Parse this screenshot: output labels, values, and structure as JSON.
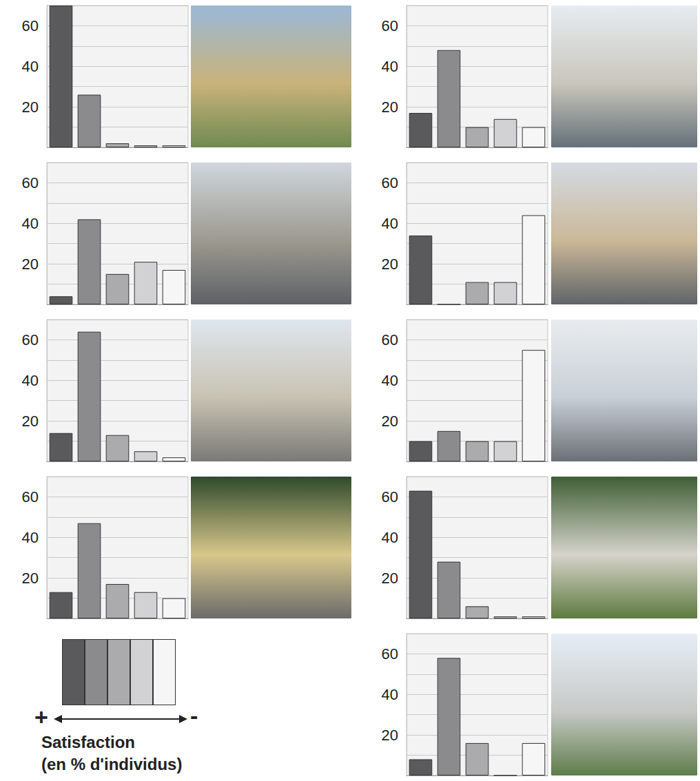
{
  "chart_data": [
    {
      "type": "bar",
      "categories": [
        null,
        null,
        null,
        null,
        null
      ],
      "values": [
        70,
        26,
        2,
        1,
        1
      ],
      "colors": [
        "#5a5a5c",
        "#8b8b8d",
        "#ababad",
        "#d2d2d4",
        "#f6f6f6"
      ],
      "ylim": [
        0,
        70
      ],
      "yticks": [
        20,
        40,
        60
      ],
      "grid": true,
      "tick_labels": "y"
    },
    {
      "type": "bar",
      "categories": [
        null,
        null,
        null,
        null,
        null
      ],
      "values": [
        4,
        42,
        15,
        21,
        17
      ],
      "colors": [
        "#5a5a5c",
        "#8b8b8d",
        "#ababad",
        "#d2d2d4",
        "#f6f6f6"
      ],
      "ylim": [
        0,
        70
      ],
      "yticks": [
        20,
        40,
        60
      ],
      "grid": true,
      "tick_labels": "y"
    },
    {
      "type": "bar",
      "categories": [
        null,
        null,
        null,
        null,
        null
      ],
      "values": [
        14,
        64,
        13,
        5,
        2
      ],
      "colors": [
        "#5a5a5c",
        "#8b8b8d",
        "#ababad",
        "#d2d2d4",
        "#f6f6f6"
      ],
      "ylim": [
        0,
        70
      ],
      "yticks": [
        20,
        40,
        60
      ],
      "grid": true,
      "tick_labels": "y"
    },
    {
      "type": "bar",
      "categories": [
        null,
        null,
        null,
        null,
        null
      ],
      "values": [
        13,
        47,
        17,
        13,
        10
      ],
      "colors": [
        "#5a5a5c",
        "#8b8b8d",
        "#ababad",
        "#d2d2d4",
        "#f6f6f6"
      ],
      "ylim": [
        0,
        70
      ],
      "yticks": [
        20,
        40,
        60
      ],
      "grid": true,
      "tick_labels": "y"
    },
    {
      "type": "bar",
      "categories": [
        null,
        null,
        null,
        null,
        null
      ],
      "values": [
        17,
        48,
        10,
        14,
        10
      ],
      "colors": [
        "#5a5a5c",
        "#8b8b8d",
        "#ababad",
        "#d2d2d4",
        "#f6f6f6"
      ],
      "ylim": [
        0,
        70
      ],
      "yticks": [
        20,
        40,
        60
      ],
      "grid": true,
      "tick_labels": "y"
    },
    {
      "type": "bar",
      "categories": [
        null,
        null,
        null,
        null,
        null
      ],
      "values": [
        34,
        0,
        11,
        11,
        44
      ],
      "colors": [
        "#5a5a5c",
        "#8b8b8d",
        "#ababad",
        "#d2d2d4",
        "#f6f6f6"
      ],
      "ylim": [
        0,
        70
      ],
      "yticks": [
        20,
        40,
        60
      ],
      "grid": true,
      "tick_labels": "y"
    },
    {
      "type": "bar",
      "categories": [
        null,
        null,
        null,
        null,
        null
      ],
      "values": [
        10,
        15,
        10,
        10,
        55
      ],
      "colors": [
        "#5a5a5c",
        "#8b8b8d",
        "#ababad",
        "#d2d2d4",
        "#f6f6f6"
      ],
      "ylim": [
        0,
        70
      ],
      "yticks": [
        20,
        40,
        60
      ],
      "grid": true,
      "tick_labels": "y"
    },
    {
      "type": "bar",
      "categories": [
        null,
        null,
        null,
        null,
        null
      ],
      "values": [
        63,
        28,
        6,
        1,
        1
      ],
      "colors": [
        "#5a5a5c",
        "#8b8b8d",
        "#ababad",
        "#d2d2d4",
        "#f6f6f6"
      ],
      "ylim": [
        0,
        70
      ],
      "yticks": [
        20,
        40,
        60
      ],
      "grid": true,
      "tick_labels": "y"
    },
    {
      "type": "bar",
      "categories": [
        null,
        null,
        null,
        null,
        null
      ],
      "values": [
        8,
        58,
        16,
        0,
        16
      ],
      "colors": [
        "#5a5a5c",
        "#8b8b8d",
        "#ababad",
        "#d2d2d4",
        "#f6f6f6"
      ],
      "ylim": [
        0,
        70
      ],
      "yticks": [
        20,
        40,
        60
      ],
      "grid": true,
      "tick_labels": "y"
    }
  ],
  "key": {
    "colors": [
      "#5a5a5c",
      "#8b8b8d",
      "#ababad",
      "#d2d2d4",
      "#f6f6f6"
    ],
    "low_end": "+",
    "high_end": "-",
    "title": [
      "Satisfaction",
      "(en % d'individus)"
    ]
  }
}
